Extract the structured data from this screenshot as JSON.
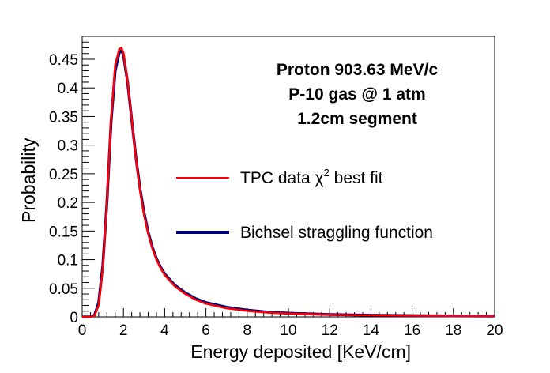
{
  "chart_data": {
    "type": "line",
    "title_lines": [
      "Proton 903.63 MeV/c",
      "P-10 gas @ 1 atm",
      "1.2cm segment"
    ],
    "xlabel": "Energy deposited [KeV/cm]",
    "ylabel": "Probability",
    "xlim": [
      0,
      20
    ],
    "ylim": [
      0,
      0.49
    ],
    "xticks": [
      "0",
      "2",
      "4",
      "6",
      "8",
      "10",
      "12",
      "14",
      "16",
      "18",
      "20"
    ],
    "yticks": [
      "0",
      "0.05",
      "0.1",
      "0.15",
      "0.2",
      "0.25",
      "0.3",
      "0.35",
      "0.4",
      "0.45"
    ],
    "grid": false,
    "legend_position": "center-right",
    "series": [
      {
        "name": "Bichsel straggling function",
        "color": "#00007f",
        "x": [
          0,
          0.4,
          0.6,
          0.8,
          1.0,
          1.2,
          1.4,
          1.6,
          1.8,
          1.9,
          2.0,
          2.2,
          2.4,
          2.6,
          2.8,
          3.0,
          3.2,
          3.4,
          3.6,
          3.8,
          4.0,
          4.5,
          5.0,
          5.5,
          6.0,
          7.0,
          8.0,
          9.0,
          10.0,
          12.0,
          14.0,
          16.0,
          18.0,
          20.0
        ],
        "y": [
          0,
          0,
          0.003,
          0.025,
          0.09,
          0.2,
          0.34,
          0.43,
          0.462,
          0.465,
          0.458,
          0.41,
          0.345,
          0.28,
          0.225,
          0.182,
          0.148,
          0.122,
          0.102,
          0.087,
          0.075,
          0.055,
          0.042,
          0.032,
          0.025,
          0.017,
          0.012,
          0.0085,
          0.0065,
          0.0042,
          0.003,
          0.0022,
          0.0017,
          0.0013
        ]
      },
      {
        "name": "TPC data χ² best fit",
        "legend_main": "TPC data ",
        "legend_chi": "χ",
        "legend_sup": "2",
        "legend_rest": " best fit",
        "color": "#ff0000",
        "x": [
          0,
          0.4,
          0.6,
          0.8,
          1.0,
          1.2,
          1.4,
          1.6,
          1.8,
          1.9,
          2.0,
          2.2,
          2.4,
          2.6,
          2.8,
          3.0,
          3.2,
          3.4,
          3.6,
          3.8,
          4.0,
          4.5,
          5.0,
          5.5,
          6.0,
          7.0,
          8.0,
          9.0,
          10.0,
          12.0,
          14.0,
          16.0,
          18.0,
          20.0
        ],
        "y": [
          0,
          0,
          0.002,
          0.02,
          0.085,
          0.2,
          0.345,
          0.44,
          0.468,
          0.47,
          0.462,
          0.412,
          0.345,
          0.278,
          0.222,
          0.178,
          0.145,
          0.12,
          0.1,
          0.085,
          0.073,
          0.053,
          0.04,
          0.03,
          0.023,
          0.015,
          0.0105,
          0.0075,
          0.0058,
          0.0038,
          0.0028,
          0.002,
          0.0015,
          0.0012
        ]
      }
    ]
  }
}
